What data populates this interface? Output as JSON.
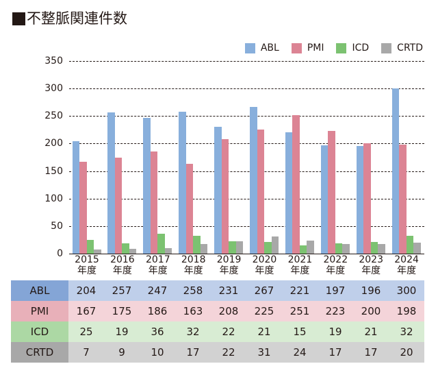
{
  "title": "不整脈関連件数",
  "legend": [
    {
      "label": "ABL",
      "color": "#88afdc"
    },
    {
      "label": "PMI",
      "color": "#dc8494"
    },
    {
      "label": "ICD",
      "color": "#7cc271"
    },
    {
      "label": "CRTD",
      "color": "#a8a8a8"
    }
  ],
  "y_ticks": [
    "350",
    "300",
    "250",
    "200",
    "150",
    "100",
    "50",
    "0"
  ],
  "x_labels": [
    {
      "year": "2015",
      "unit": "年度"
    },
    {
      "year": "2016",
      "unit": "年度"
    },
    {
      "year": "2017",
      "unit": "年度"
    },
    {
      "year": "2018",
      "unit": "年度"
    },
    {
      "year": "2019",
      "unit": "年度"
    },
    {
      "year": "2020",
      "unit": "年度"
    },
    {
      "year": "2021",
      "unit": "年度"
    },
    {
      "year": "2022",
      "unit": "年度"
    },
    {
      "year": "2023",
      "unit": "年度"
    },
    {
      "year": "2024",
      "unit": "年度"
    }
  ],
  "table": {
    "rows": [
      {
        "label": "ABL",
        "label_bg": "#84a5d6",
        "row_bg": "#bfcfea",
        "values": [
          "204",
          "257",
          "247",
          "258",
          "231",
          "267",
          "221",
          "197",
          "196",
          "300"
        ]
      },
      {
        "label": "PMI",
        "label_bg": "#e8b0b9",
        "row_bg": "#f4d4d9",
        "values": [
          "167",
          "175",
          "186",
          "163",
          "208",
          "225",
          "251",
          "223",
          "200",
          "198"
        ]
      },
      {
        "label": "ICD",
        "label_bg": "#acd8a4",
        "row_bg": "#d8ecd3",
        "values": [
          "25",
          "19",
          "36",
          "32",
          "22",
          "21",
          "15",
          "19",
          "21",
          "32"
        ]
      },
      {
        "label": "CRTD",
        "label_bg": "#a8a8a8",
        "row_bg": "#d2d2d2",
        "values": [
          "7",
          "9",
          "10",
          "17",
          "22",
          "31",
          "24",
          "17",
          "17",
          "20"
        ]
      }
    ]
  },
  "chart_data": {
    "type": "bar",
    "title": "■不整脈関連件数",
    "categories": [
      "2015年度",
      "2016年度",
      "2017年度",
      "2018年度",
      "2019年度",
      "2020年度",
      "2021年度",
      "2022年度",
      "2023年度",
      "2024年度"
    ],
    "series": [
      {
        "name": "ABL",
        "color": "#88afdc",
        "values": [
          204,
          257,
          247,
          258,
          231,
          267,
          221,
          197,
          196,
          300
        ]
      },
      {
        "name": "PMI",
        "color": "#dc8494",
        "values": [
          167,
          175,
          186,
          163,
          208,
          225,
          251,
          223,
          200,
          198
        ]
      },
      {
        "name": "ICD",
        "color": "#7cc271",
        "values": [
          25,
          19,
          36,
          32,
          22,
          21,
          15,
          19,
          21,
          32
        ]
      },
      {
        "name": "CRTD",
        "color": "#a8a8a8",
        "values": [
          7,
          9,
          10,
          17,
          22,
          31,
          24,
          17,
          17,
          20
        ]
      }
    ],
    "xlabel": "",
    "ylabel": "",
    "ylim": [
      0,
      350
    ],
    "yticks": [
      0,
      50,
      100,
      150,
      200,
      250,
      300,
      350
    ],
    "grid": true,
    "grid_style": "dashed",
    "legend_position": "top-right",
    "data_table": true
  }
}
